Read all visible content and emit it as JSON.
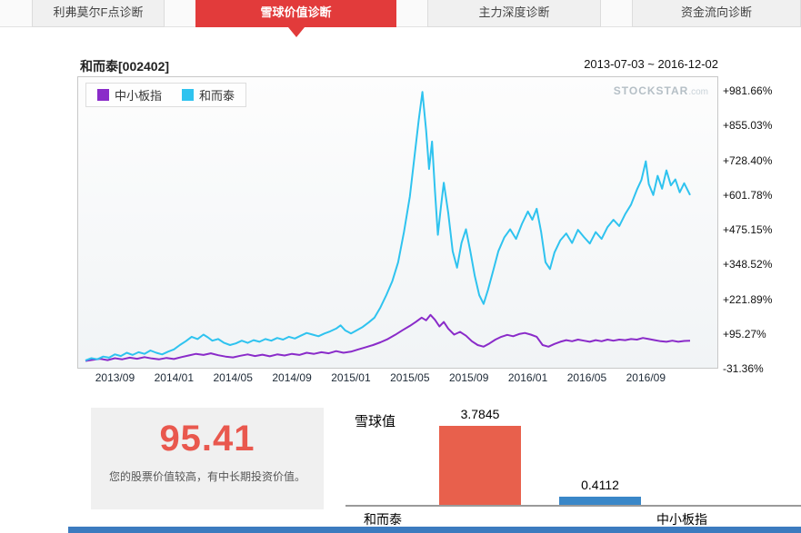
{
  "tabs": [
    {
      "label": "利弗莫尔F点诊断",
      "active": false
    },
    {
      "label": "雪球价值诊断",
      "active": true
    },
    {
      "label": "主力深度诊断",
      "active": false
    },
    {
      "label": "资金流向诊断",
      "active": false
    }
  ],
  "chart_header": {
    "title": "和而泰[002402]",
    "date_range": "2013-07-03 ~ 2016-12-02",
    "watermark_main": "STOCKSTAR",
    "watermark_suffix": ".com"
  },
  "score_box": {
    "score": "95.41",
    "description": "您的股票价值较高，有中长期投资价值。"
  },
  "colors": {
    "accent_red": "#e23b3b",
    "score_red": "#e9584e",
    "bar_red": "#e8604c",
    "bar_blue": "#3a87c8",
    "line_purple": "#8a2bc9",
    "line_cyan": "#2fc3ef",
    "bottom_strip_blue": "#3c7bbf"
  },
  "chart_data": [
    {
      "type": "line",
      "title": "和而泰[002402]",
      "date_range": "2013-07-03 ~ 2016-12-02",
      "x_unit": "months since 2013-07",
      "y_unit": "percent change",
      "x_ticks": [
        "2013/09",
        "2014/01",
        "2014/05",
        "2014/09",
        "2015/01",
        "2015/05",
        "2015/09",
        "2016/01",
        "2016/05",
        "2016/09"
      ],
      "x_tick_months": [
        2,
        6,
        10,
        14,
        18,
        22,
        26,
        30,
        34,
        38
      ],
      "y_ticks": [
        "+981.66%",
        "+855.03%",
        "+728.40%",
        "+601.78%",
        "+475.15%",
        "+348.52%",
        "+221.89%",
        "+95.27%",
        "-31.36%"
      ],
      "ylim": [
        -31.36,
        981.66
      ],
      "grid": false,
      "legend_position": "top-left",
      "series": [
        {
          "key": "index",
          "name": "中小板指",
          "color": "#8a2bc9",
          "points": [
            [
              0,
              0
            ],
            [
              0.5,
              4
            ],
            [
              1,
              8
            ],
            [
              1.5,
              3
            ],
            [
              2,
              10
            ],
            [
              2.5,
              6
            ],
            [
              3,
              12
            ],
            [
              3.5,
              8
            ],
            [
              4,
              14
            ],
            [
              4.5,
              9
            ],
            [
              5,
              6
            ],
            [
              5.5,
              11
            ],
            [
              6,
              7
            ],
            [
              6.5,
              14
            ],
            [
              7,
              20
            ],
            [
              7.5,
              26
            ],
            [
              8,
              22
            ],
            [
              8.5,
              28
            ],
            [
              9,
              21
            ],
            [
              9.5,
              16
            ],
            [
              10,
              13
            ],
            [
              10.5,
              19
            ],
            [
              11,
              24
            ],
            [
              11.5,
              18
            ],
            [
              12,
              23
            ],
            [
              12.5,
              17
            ],
            [
              13,
              24
            ],
            [
              13.5,
              20
            ],
            [
              14,
              26
            ],
            [
              14.5,
              22
            ],
            [
              15,
              30
            ],
            [
              15.5,
              26
            ],
            [
              16,
              32
            ],
            [
              16.5,
              28
            ],
            [
              17,
              36
            ],
            [
              17.5,
              30
            ],
            [
              18,
              34
            ],
            [
              18.5,
              42
            ],
            [
              19,
              50
            ],
            [
              19.5,
              58
            ],
            [
              20,
              68
            ],
            [
              20.5,
              80
            ],
            [
              21,
              95
            ],
            [
              21.5,
              112
            ],
            [
              22,
              128
            ],
            [
              22.4,
              142
            ],
            [
              22.8,
              158
            ],
            [
              23.1,
              148
            ],
            [
              23.4,
              168
            ],
            [
              23.7,
              150
            ],
            [
              24,
              126
            ],
            [
              24.3,
              142
            ],
            [
              24.6,
              118
            ],
            [
              25,
              96
            ],
            [
              25.4,
              106
            ],
            [
              25.8,
              92
            ],
            [
              26.2,
              72
            ],
            [
              26.6,
              58
            ],
            [
              27,
              52
            ],
            [
              27.4,
              64
            ],
            [
              27.8,
              78
            ],
            [
              28.2,
              88
            ],
            [
              28.6,
              95
            ],
            [
              29,
              90
            ],
            [
              29.4,
              98
            ],
            [
              29.8,
              102
            ],
            [
              30.2,
              96
            ],
            [
              30.6,
              88
            ],
            [
              31,
              58
            ],
            [
              31.4,
              52
            ],
            [
              31.8,
              62
            ],
            [
              32.2,
              70
            ],
            [
              32.6,
              76
            ],
            [
              33,
              72
            ],
            [
              33.4,
              78
            ],
            [
              33.8,
              74
            ],
            [
              34.2,
              70
            ],
            [
              34.6,
              76
            ],
            [
              35,
              72
            ],
            [
              35.4,
              78
            ],
            [
              35.8,
              74
            ],
            [
              36.2,
              78
            ],
            [
              36.6,
              76
            ],
            [
              37,
              80
            ],
            [
              37.4,
              78
            ],
            [
              37.8,
              84
            ],
            [
              38.2,
              80
            ],
            [
              38.6,
              76
            ],
            [
              39,
              72
            ],
            [
              39.4,
              70
            ],
            [
              39.8,
              74
            ],
            [
              40.2,
              70
            ],
            [
              40.6,
              73
            ],
            [
              41,
              74
            ]
          ]
        },
        {
          "key": "stock",
          "name": "和而泰",
          "color": "#2fc3ef",
          "points": [
            [
              0,
              2
            ],
            [
              0.4,
              10
            ],
            [
              0.8,
              6
            ],
            [
              1.2,
              16
            ],
            [
              1.6,
              12
            ],
            [
              2,
              24
            ],
            [
              2.4,
              18
            ],
            [
              2.8,
              30
            ],
            [
              3.2,
              22
            ],
            [
              3.6,
              32
            ],
            [
              4,
              26
            ],
            [
              4.4,
              38
            ],
            [
              4.8,
              30
            ],
            [
              5.2,
              24
            ],
            [
              5.6,
              34
            ],
            [
              6,
              42
            ],
            [
              6.4,
              58
            ],
            [
              6.8,
              72
            ],
            [
              7.2,
              88
            ],
            [
              7.6,
              80
            ],
            [
              8,
              96
            ],
            [
              8.3,
              86
            ],
            [
              8.6,
              74
            ],
            [
              9,
              80
            ],
            [
              9.4,
              66
            ],
            [
              9.8,
              58
            ],
            [
              10.2,
              64
            ],
            [
              10.6,
              74
            ],
            [
              11,
              66
            ],
            [
              11.4,
              76
            ],
            [
              11.8,
              70
            ],
            [
              12.2,
              80
            ],
            [
              12.6,
              74
            ],
            [
              13,
              84
            ],
            [
              13.4,
              78
            ],
            [
              13.8,
              88
            ],
            [
              14.2,
              82
            ],
            [
              14.6,
              92
            ],
            [
              15,
              102
            ],
            [
              15.4,
              96
            ],
            [
              15.8,
              90
            ],
            [
              16.2,
              100
            ],
            [
              16.6,
              108
            ],
            [
              17,
              118
            ],
            [
              17.3,
              130
            ],
            [
              17.6,
              112
            ],
            [
              18,
              100
            ],
            [
              18.4,
              112
            ],
            [
              18.8,
              124
            ],
            [
              19.2,
              140
            ],
            [
              19.6,
              158
            ],
            [
              20,
              195
            ],
            [
              20.4,
              240
            ],
            [
              20.8,
              290
            ],
            [
              21.2,
              360
            ],
            [
              21.6,
              470
            ],
            [
              22,
              600
            ],
            [
              22.3,
              740
            ],
            [
              22.6,
              880
            ],
            [
              22.85,
              981
            ],
            [
              23.1,
              840
            ],
            [
              23.3,
              700
            ],
            [
              23.5,
              800
            ],
            [
              23.7,
              620
            ],
            [
              23.9,
              460
            ],
            [
              24.1,
              560
            ],
            [
              24.3,
              650
            ],
            [
              24.6,
              540
            ],
            [
              24.9,
              400
            ],
            [
              25.2,
              340
            ],
            [
              25.5,
              430
            ],
            [
              25.8,
              480
            ],
            [
              26.1,
              400
            ],
            [
              26.4,
              310
            ],
            [
              26.7,
              240
            ],
            [
              27,
              208
            ],
            [
              27.3,
              260
            ],
            [
              27.6,
              320
            ],
            [
              28,
              400
            ],
            [
              28.4,
              450
            ],
            [
              28.8,
              480
            ],
            [
              29.2,
              445
            ],
            [
              29.6,
              500
            ],
            [
              30,
              545
            ],
            [
              30.3,
              515
            ],
            [
              30.6,
              555
            ],
            [
              30.9,
              470
            ],
            [
              31.2,
              360
            ],
            [
              31.5,
              335
            ],
            [
              31.8,
              395
            ],
            [
              32.2,
              440
            ],
            [
              32.6,
              465
            ],
            [
              33,
              430
            ],
            [
              33.4,
              478
            ],
            [
              33.8,
              452
            ],
            [
              34.2,
              428
            ],
            [
              34.6,
              470
            ],
            [
              35,
              445
            ],
            [
              35.4,
              488
            ],
            [
              35.8,
              515
            ],
            [
              36.2,
              492
            ],
            [
              36.6,
              535
            ],
            [
              37,
              570
            ],
            [
              37.4,
              625
            ],
            [
              37.7,
              660
            ],
            [
              38,
              728
            ],
            [
              38.2,
              645
            ],
            [
              38.5,
              605
            ],
            [
              38.8,
              675
            ],
            [
              39.1,
              628
            ],
            [
              39.4,
              695
            ],
            [
              39.7,
              640
            ],
            [
              40,
              662
            ],
            [
              40.3,
              615
            ],
            [
              40.6,
              648
            ],
            [
              41,
              605
            ]
          ]
        }
      ]
    },
    {
      "type": "bar",
      "title": "雪球值",
      "categories": [
        "和而泰",
        "中小板指"
      ],
      "keys": [
        "stock",
        "index"
      ],
      "values": [
        3.7845,
        0.4112
      ],
      "value_labels": [
        "3.7845",
        "0.4112"
      ],
      "colors": [
        "#e8604c",
        "#3a87c8"
      ]
    }
  ]
}
